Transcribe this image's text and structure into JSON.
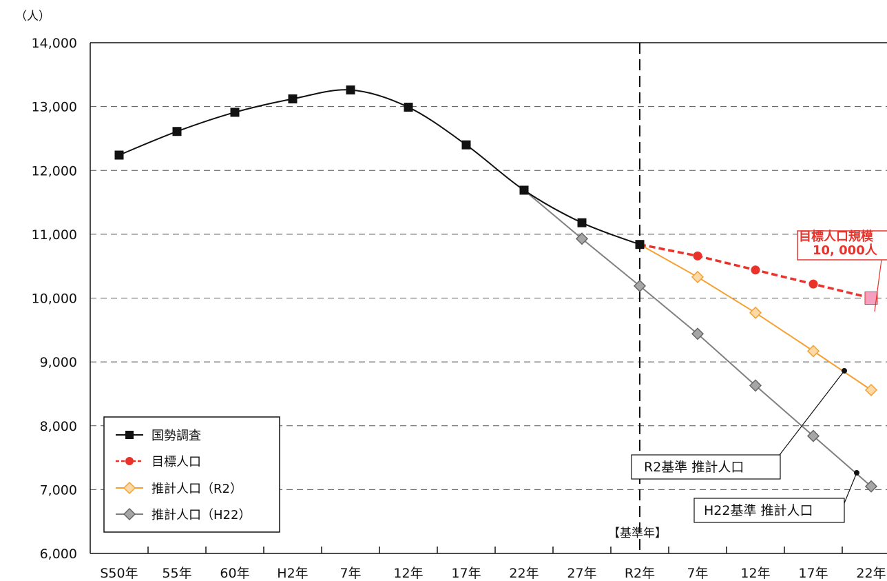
{
  "chart_data": {
    "type": "line",
    "unit_label": "（人）",
    "ylim": [
      6000,
      14000
    ],
    "yticks": [
      6000,
      7000,
      8000,
      9000,
      10000,
      11000,
      12000,
      13000,
      14000
    ],
    "ytick_labels": [
      "6,000",
      "7,000",
      "8,000",
      "9,000",
      "10,000",
      "11,000",
      "12,000",
      "13,000",
      "14,000"
    ],
    "categories": [
      "S50年",
      "55年",
      "60年",
      "H2年",
      "7年",
      "12年",
      "17年",
      "22年",
      "27年",
      "R2年",
      "7年",
      "12年",
      "17年",
      "22年"
    ],
    "grid": "horizontal dashed",
    "base_year_label": "【基準年】",
    "base_year_index": 9,
    "series": [
      {
        "name": "国勢調査",
        "color": "#111111",
        "marker": "square",
        "dash": false,
        "values": [
          12240,
          12610,
          12910,
          13120,
          13260,
          12990,
          12400,
          11690,
          11180,
          10840,
          null,
          null,
          null,
          null
        ]
      },
      {
        "name": "目標人口",
        "color": "#e8322a",
        "marker": "circle",
        "dash": true,
        "values": [
          null,
          null,
          null,
          null,
          null,
          null,
          null,
          null,
          null,
          10840,
          10660,
          10440,
          10220,
          10000
        ]
      },
      {
        "name": "推計人口（R2）",
        "color": "#f5a033",
        "marker": "diamond",
        "dash": false,
        "values": [
          null,
          null,
          null,
          null,
          null,
          null,
          null,
          null,
          null,
          10840,
          10330,
          9770,
          9170,
          8560
        ]
      },
      {
        "name": "推計人口（H22）",
        "color": "#7f7f7f",
        "marker": "diamond",
        "dash": false,
        "values": [
          null,
          null,
          null,
          null,
          null,
          null,
          null,
          11690,
          10930,
          10190,
          9440,
          8630,
          7840,
          7050
        ]
      }
    ],
    "annotations": {
      "target_line1": "目標人口規模",
      "target_line2": "10, 000人",
      "target_value": 10000,
      "r2_callout": "R2基準 推計人口",
      "h22_callout": "H22基準 推計人口"
    },
    "legend_position": "bottom-left"
  }
}
